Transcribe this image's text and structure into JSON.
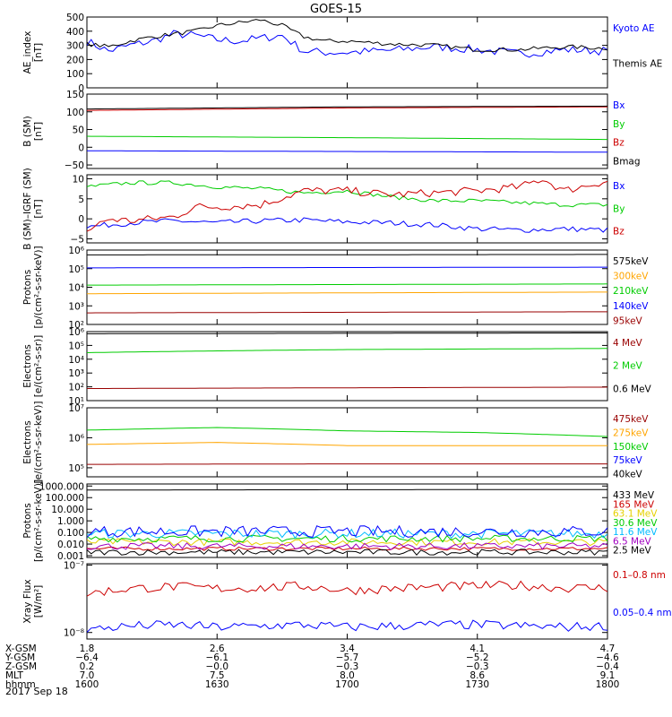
{
  "title": "GOES-15",
  "colors": {
    "blue": "#0000ff",
    "black": "#000000",
    "red": "#cc0000",
    "green": "#00cc00",
    "orange": "#ffa500",
    "darkred": "#990000",
    "cyan": "#00bbff",
    "purple": "#a000c0",
    "yellow": "#e6d000"
  },
  "chart_data": [
    {
      "type": "line",
      "ylabel": [
        "AE_index",
        "[nT]"
      ],
      "yscale": "linear",
      "ylim": [
        0,
        500
      ],
      "yticks": [
        0,
        100,
        200,
        300,
        400,
        500
      ],
      "yticklabels": [
        "0",
        "100",
        "200",
        "300",
        "400",
        "500"
      ],
      "series": [
        {
          "name": "Kyoto AE",
          "color": "#0000ff",
          "noise": 0.06,
          "x": [
            1600,
            1605,
            1610,
            1615,
            1620,
            1625,
            1630,
            1635,
            1640,
            1645,
            1650,
            1655,
            1700,
            1710,
            1720,
            1730,
            1740,
            1750,
            1800
          ],
          "y": [
            330,
            260,
            300,
            330,
            380,
            370,
            340,
            330,
            350,
            370,
            260,
            250,
            250,
            265,
            290,
            270,
            240,
            270,
            260
          ]
        },
        {
          "name": "Themis AE",
          "color": "#000000",
          "noise": 0.03,
          "x": [
            1600,
            1605,
            1610,
            1615,
            1620,
            1625,
            1630,
            1635,
            1640,
            1645,
            1650,
            1655,
            1700,
            1710,
            1720,
            1730,
            1740,
            1750,
            1800
          ],
          "y": [
            310,
            290,
            330,
            360,
            380,
            400,
            440,
            460,
            480,
            440,
            360,
            330,
            330,
            310,
            300,
            270,
            270,
            290,
            280
          ]
        }
      ]
    },
    {
      "type": "line",
      "ylabel": [
        "B (SM)",
        "[nT]"
      ],
      "yscale": "linear",
      "ylim": [
        -60,
        150
      ],
      "yticks": [
        -50,
        0,
        50,
        100,
        150
      ],
      "yticklabels": [
        "−50",
        "0",
        "50",
        "100",
        "150"
      ],
      "series": [
        {
          "name": "Bx",
          "color": "#0000ff",
          "noise": 0.0,
          "x": [
            1600,
            1700,
            1800
          ],
          "y": [
            -10,
            -12,
            -14
          ]
        },
        {
          "name": "By",
          "color": "#00cc00",
          "noise": 0.0,
          "x": [
            1600,
            1700,
            1800
          ],
          "y": [
            31,
            27,
            22
          ]
        },
        {
          "name": "Bz",
          "color": "#cc0000",
          "noise": 0.0,
          "x": [
            1600,
            1700,
            1800
          ],
          "y": [
            104,
            111,
            114
          ]
        },
        {
          "name": "Bmag",
          "color": "#000000",
          "noise": 0.0,
          "x": [
            1600,
            1700,
            1800
          ],
          "y": [
            108,
            114,
            116
          ]
        }
      ]
    },
    {
      "type": "line",
      "ylabel": [
        "B (SM)–IGRF (SM)",
        "[nT]"
      ],
      "yscale": "linear",
      "ylim": [
        -6,
        11
      ],
      "yticks": [
        -5,
        0,
        5,
        10
      ],
      "yticklabels": [
        "−5",
        "0",
        "5",
        "10"
      ],
      "series": [
        {
          "name": "Bx",
          "color": "#0000ff",
          "noise": 0.04,
          "x": [
            1600,
            1610,
            1620,
            1630,
            1640,
            1650,
            1700,
            1710,
            1720,
            1730,
            1740,
            1750,
            1800
          ],
          "y": [
            -2,
            -1,
            -0.5,
            -1,
            -0.5,
            -0.3,
            -0.8,
            -1,
            -1.5,
            -2.5,
            -2.8,
            -2.5,
            -2.8
          ]
        },
        {
          "name": "By",
          "color": "#00cc00",
          "noise": 0.03,
          "x": [
            1600,
            1610,
            1620,
            1630,
            1640,
            1650,
            1700,
            1710,
            1720,
            1730,
            1740,
            1750,
            1800
          ],
          "y": [
            8,
            9,
            9,
            8,
            7.5,
            6.5,
            7,
            5.5,
            4.5,
            4.5,
            4,
            3.5,
            3.5
          ]
        },
        {
          "name": "Bz",
          "color": "#cc0000",
          "noise": 0.06,
          "x": [
            1600,
            1605,
            1610,
            1615,
            1620,
            1625,
            1630,
            1640,
            1650,
            1700,
            1710,
            1720,
            1730,
            1740,
            1745,
            1750,
            1800
          ],
          "y": [
            -3,
            0,
            -0.5,
            0,
            0.5,
            3,
            3,
            3.5,
            7,
            7,
            6,
            6.5,
            7,
            8,
            10,
            7,
            9.5
          ]
        }
      ]
    },
    {
      "type": "line",
      "ylabel": [
        "Protons",
        "[p/(cm²-s-sr-keV)]"
      ],
      "yscale": "log",
      "ylim": [
        100,
        1000000
      ],
      "yticks": [
        100,
        1000,
        10000,
        100000,
        1000000
      ],
      "yticklabels": [
        "10²",
        "10³",
        "10⁴",
        "10⁵",
        "10⁶"
      ],
      "series": [
        {
          "name": "575keV",
          "color": "#000000",
          "noise": 0.0,
          "x": [
            1600,
            1700,
            1800
          ],
          "y": [
            550000,
            560000,
            580000
          ]
        },
        {
          "name": "300keV",
          "color": "#ffa500",
          "noise": 0.0,
          "x": [
            1600,
            1700,
            1800
          ],
          "y": [
            4500,
            5000,
            5500
          ]
        },
        {
          "name": "210keV",
          "color": "#00cc00",
          "noise": 0.0,
          "x": [
            1600,
            1700,
            1800
          ],
          "y": [
            13000,
            14000,
            15000
          ]
        },
        {
          "name": "140keV",
          "color": "#0000ff",
          "noise": 0.0,
          "x": [
            1600,
            1700,
            1800
          ],
          "y": [
            110000,
            115000,
            120000
          ]
        },
        {
          "name": "95keV",
          "color": "#990000",
          "noise": 0.0,
          "x": [
            1600,
            1700,
            1800
          ],
          "y": [
            420,
            450,
            480
          ]
        }
      ]
    },
    {
      "type": "line",
      "ylabel": [
        "Electrons",
        "[e/(cm²-s-sr)]"
      ],
      "yscale": "log",
      "ylim": [
        10,
        1000000
      ],
      "yticks": [
        10,
        100,
        1000,
        10000,
        100000,
        1000000
      ],
      "yticklabels": [
        "10¹",
        "10²",
        "10³",
        "10⁴",
        "10⁵",
        "10⁶"
      ],
      "series": [
        {
          "name": "4 MeV",
          "color": "#990000",
          "noise": 0.0,
          "x": [
            1600,
            1700,
            1800
          ],
          "y": [
            75,
            85,
            95
          ]
        },
        {
          "name": "2 MeV",
          "color": "#00cc00",
          "noise": 0.0,
          "x": [
            1600,
            1630,
            1700,
            1800
          ],
          "y": [
            30000,
            40000,
            50000,
            60000
          ]
        },
        {
          "name": "0.6 MeV",
          "color": "#000000",
          "noise": 0.0,
          "x": [
            1600,
            1700,
            1800
          ],
          "y": [
            700000,
            750000,
            800000
          ]
        }
      ]
    },
    {
      "type": "line",
      "ylabel": [
        "Electrons",
        "[e/(cm²-s-sr-keV)]"
      ],
      "yscale": "log",
      "ylim": [
        50000,
        10000000
      ],
      "yticks": [
        100000,
        1000000,
        10000000
      ],
      "yticklabels": [
        "10⁵",
        "10⁶",
        "10⁷"
      ],
      "series": [
        {
          "name": "475keV",
          "color": "#990000",
          "noise": 0.0,
          "x": [
            1600,
            1700,
            1800
          ],
          "y": [
            130000,
            135000,
            135000
          ]
        },
        {
          "name": "275keV",
          "color": "#ffa500",
          "noise": 0.0,
          "x": [
            1600,
            1630,
            1700,
            1800
          ],
          "y": [
            600000,
            700000,
            550000,
            550000
          ]
        },
        {
          "name": "150keV",
          "color": "#00cc00",
          "noise": 0.0,
          "x": [
            1600,
            1630,
            1700,
            1730,
            1800
          ],
          "y": [
            1800000,
            2200000,
            1700000,
            1500000,
            1100000
          ]
        },
        {
          "name": "75keV",
          "color": "#0000ff",
          "noise": 0.0,
          "x": [],
          "y": []
        },
        {
          "name": "40keV",
          "color": "#000000",
          "noise": 0.0,
          "x": [],
          "y": []
        }
      ]
    },
    {
      "type": "line",
      "ylabel": [
        "Protons",
        "[p/(cm²-s-sr-keV)]"
      ],
      "yscale": "log",
      "ylim": [
        0.0007,
        1500
      ],
      "yticks": [
        0.001,
        0.01,
        0.1,
        1,
        10,
        100,
        1000
      ],
      "yticklabels": [
        "0.001",
        "0.010",
        "0.100",
        "1.000",
        "10.000",
        "100.000",
        "1000.000"
      ],
      "series": [
        {
          "name": "433 MeV",
          "color": "#000000",
          "noise": 0.0,
          "x": [
            1600,
            1700,
            1800
          ],
          "y": [
            450,
            480,
            500
          ]
        },
        {
          "name": "165 MeV",
          "color": "#cc0000",
          "noise": 0.15,
          "x": [
            1600,
            1700,
            1800
          ],
          "y": [
            0.004,
            0.004,
            0.004
          ]
        },
        {
          "name": "63.1 MeV",
          "color": "#e6d000",
          "noise": 0.3,
          "x": [
            1600,
            1700,
            1800
          ],
          "y": [
            0.015,
            0.015,
            0.015
          ]
        },
        {
          "name": "30.6 MeV",
          "color": "#00cc00",
          "noise": 0.3,
          "x": [
            1600,
            1700,
            1800
          ],
          "y": [
            0.03,
            0.03,
            0.03
          ]
        },
        {
          "name": "11.6 MeV",
          "color": "#00bbff",
          "noise": 0.4,
          "x": [
            1600,
            1700,
            1800
          ],
          "y": [
            0.08,
            0.08,
            0.08
          ]
        },
        {
          "name": "6.5 MeV",
          "color": "#a000c0",
          "noise": 0.3,
          "x": [
            1600,
            1700,
            1800
          ],
          "y": [
            0.0065,
            0.0065,
            0.0065
          ]
        },
        {
          "name": "2.5 MeV",
          "color": "#000000",
          "noise": 0.25,
          "x": [
            1600,
            1700,
            1800
          ],
          "y": [
            0.002,
            0.002,
            0.002
          ]
        },
        {
          "name": "",
          "color": "#0000ff",
          "noise": 0.5,
          "x": [
            1600,
            1700,
            1800
          ],
          "y": [
            0.12,
            0.12,
            0.12
          ]
        }
      ]
    },
    {
      "type": "line",
      "ylabel": [
        "Xray Flux",
        "[W/m²]"
      ],
      "yscale": "log",
      "ylim": [
        8e-09,
        1.05e-07
      ],
      "yticks": [
        1e-08,
        1e-07
      ],
      "yticklabels": [
        "10⁻⁸",
        "10⁻⁷"
      ],
      "series": [
        {
          "name": "0.1–0.8 nm",
          "color": "#cc0000",
          "noise": 0.07,
          "x": [
            1600,
            1610,
            1620,
            1630,
            1640,
            1650,
            1700,
            1710,
            1720,
            1730,
            1740,
            1750,
            1800
          ],
          "y": [
            3.8e-08,
            4.5e-08,
            4.8e-08,
            4.5e-08,
            4.6e-08,
            4.9e-08,
            4.2e-08,
            4.5e-08,
            4.7e-08,
            4.9e-08,
            5e-08,
            4.6e-08,
            4.6e-08
          ]
        },
        {
          "name": "0.05–0.4 nm",
          "color": "#0000ff",
          "noise": 0.07,
          "x": [
            1600,
            1610,
            1620,
            1630,
            1640,
            1650,
            1700,
            1710,
            1720,
            1730,
            1740,
            1750,
            1800
          ],
          "y": [
            1.1e-08,
            1.25e-08,
            1.3e-08,
            1.2e-08,
            1.25e-08,
            1.3e-08,
            1.2e-08,
            1.25e-08,
            1.3e-08,
            1.3e-08,
            1.25e-08,
            1.2e-08,
            1.25e-08
          ]
        }
      ]
    }
  ],
  "xaxis": {
    "ticks": [
      1600,
      1630,
      1700,
      1730,
      1800
    ],
    "rows": [
      {
        "label": "X-GSM",
        "values": [
          "1.8",
          "2.6",
          "3.4",
          "4.1",
          "4.7"
        ]
      },
      {
        "label": "Y-GSM",
        "values": [
          "−6.4",
          "−6.1",
          "−5.7",
          "−5.2",
          "−4.6"
        ]
      },
      {
        "label": "Z-GSM",
        "values": [
          "0.2",
          "−0.0",
          "−0.3",
          "−0.3",
          "−0.4"
        ]
      },
      {
        "label": "MLT",
        "values": [
          "7.0",
          "7.5",
          "8.0",
          "8.6",
          "9.1"
        ]
      },
      {
        "label": "hhmm",
        "values": [
          "1600",
          "1630",
          "1700",
          "1730",
          "1800"
        ]
      }
    ],
    "date": "2017 Sep 18"
  }
}
